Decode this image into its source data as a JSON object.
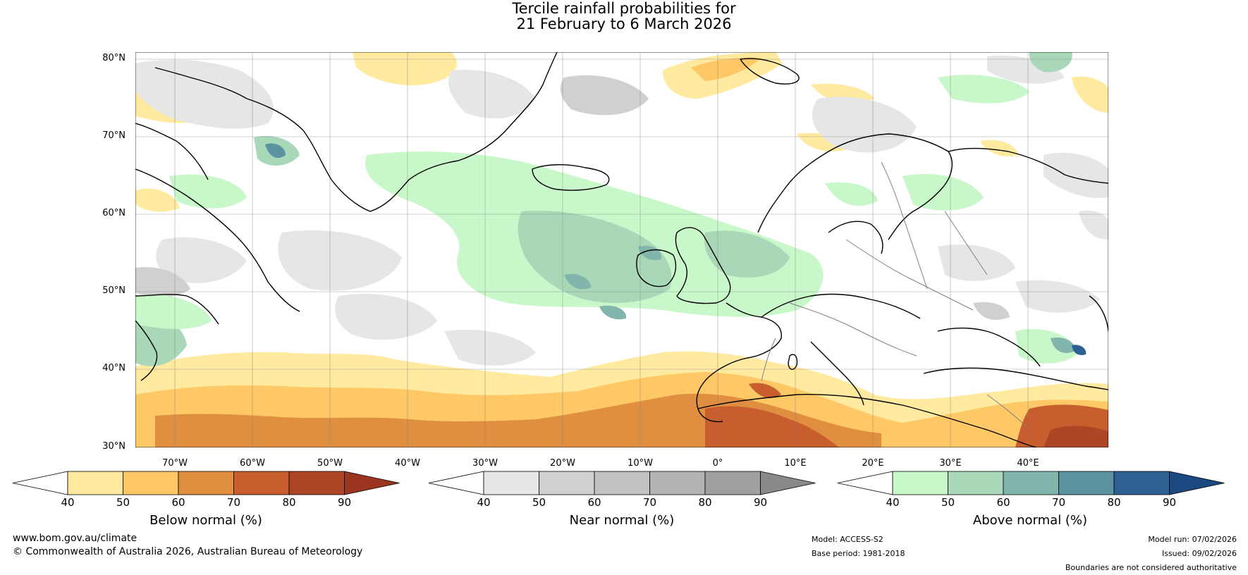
{
  "title": {
    "line1": "Tercile rainfall probabilities for",
    "line2": "21 February to 6 March 2026"
  },
  "latitude_labels": [
    "80°N",
    "70°N",
    "60°N",
    "50°N",
    "40°N",
    "30°N"
  ],
  "longitude_labels": [
    "70°W",
    "60°W",
    "50°W",
    "40°W",
    "30°W",
    "20°W",
    "10°W",
    "0°",
    "10°E",
    "20°E",
    "30°E",
    "40°E"
  ],
  "colorbars": [
    {
      "title": "Below normal (%)",
      "ticks": [
        "40",
        "50",
        "60",
        "70",
        "80",
        "90"
      ],
      "colors": [
        "#ffffff",
        "#ffeaa0",
        "#fdc865",
        "#e08f40",
        "#c85e2e",
        "#ad4626",
        "#9b3520"
      ]
    },
    {
      "title": "Near normal (%)",
      "ticks": [
        "40",
        "50",
        "60",
        "70",
        "80",
        "90"
      ],
      "colors": [
        "#ffffff",
        "#e6e6e6",
        "#d0d0d0",
        "#c2c2c2",
        "#b3b3b3",
        "#a0a0a0",
        "#888888"
      ]
    },
    {
      "title": "Above normal (%)",
      "ticks": [
        "40",
        "50",
        "60",
        "70",
        "80",
        "90"
      ],
      "colors": [
        "#ffffff",
        "#c8f7c9",
        "#a8d8b8",
        "#82b6ad",
        "#5b93a0",
        "#2d6194",
        "#1a4a80"
      ]
    }
  ],
  "footer": {
    "website": "www.bom.gov.au/climate",
    "copyright": "© Commonwealth of Australia 2026, Australian Bureau of Meteorology",
    "model": "Model: ACCESS-S2",
    "base_period": "Base period: 1981-2018",
    "model_run": "Model run: 07/02/2026",
    "issued": "Issued: 09/02/2026",
    "disclaimer": "Boundaries are not considered authoritative"
  }
}
